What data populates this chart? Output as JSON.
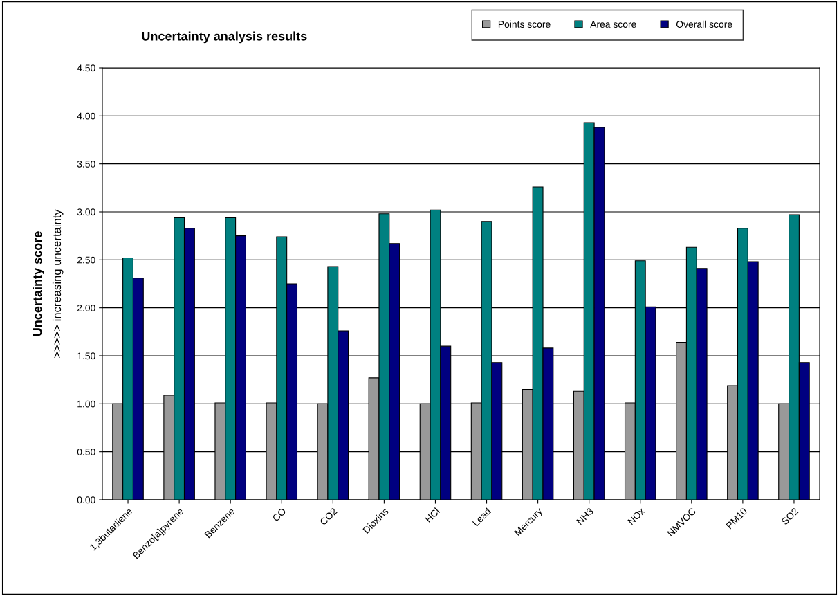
{
  "chart_data": {
    "type": "bar",
    "title": "Uncertainty analysis results",
    "ylabel": "Uncertainty score",
    "annotations": [
      ">>>>> increasing uncertainty"
    ],
    "categories": [
      "1,3butadiene",
      "Benzo[a]pyrene",
      "Benzene",
      "CO",
      "CO2",
      "Dioxins",
      "HCl",
      "Lead",
      "Mercury",
      "NH3",
      "NOx",
      "NMVOC",
      "PM10",
      "SO2"
    ],
    "series": [
      {
        "name": "Points score",
        "color": "#999999",
        "values": [
          1.0,
          1.09,
          1.01,
          1.01,
          1.0,
          1.27,
          1.0,
          1.01,
          1.15,
          1.13,
          1.01,
          1.64,
          1.19,
          1.0
        ]
      },
      {
        "name": "Area score",
        "color": "#008080",
        "values": [
          2.52,
          2.94,
          2.94,
          2.74,
          2.43,
          2.98,
          3.02,
          2.9,
          3.26,
          3.93,
          2.49,
          2.63,
          2.83,
          2.97
        ]
      },
      {
        "name": "Overall score",
        "color": "#000080",
        "values": [
          2.31,
          2.83,
          2.75,
          2.25,
          1.76,
          2.67,
          1.6,
          1.43,
          1.58,
          3.88,
          2.01,
          2.41,
          2.48,
          1.43
        ]
      }
    ],
    "ylim": [
      0,
      4.5
    ],
    "yticks": [
      {
        "value": 0,
        "label": "0.00"
      },
      {
        "value": 0.5,
        "label": "0.50"
      },
      {
        "value": 1,
        "label": "1.00"
      },
      {
        "value": 1.5,
        "label": "1.50"
      },
      {
        "value": 2,
        "label": "2.00"
      },
      {
        "value": 2.5,
        "label": "2.50"
      },
      {
        "value": 3,
        "label": "3.00"
      },
      {
        "value": 3.5,
        "label": "3.50"
      },
      {
        "value": 4,
        "label": "4.00"
      },
      {
        "value": 4.5,
        "label": "4.50"
      }
    ],
    "grid": "y",
    "legend": "top right"
  }
}
